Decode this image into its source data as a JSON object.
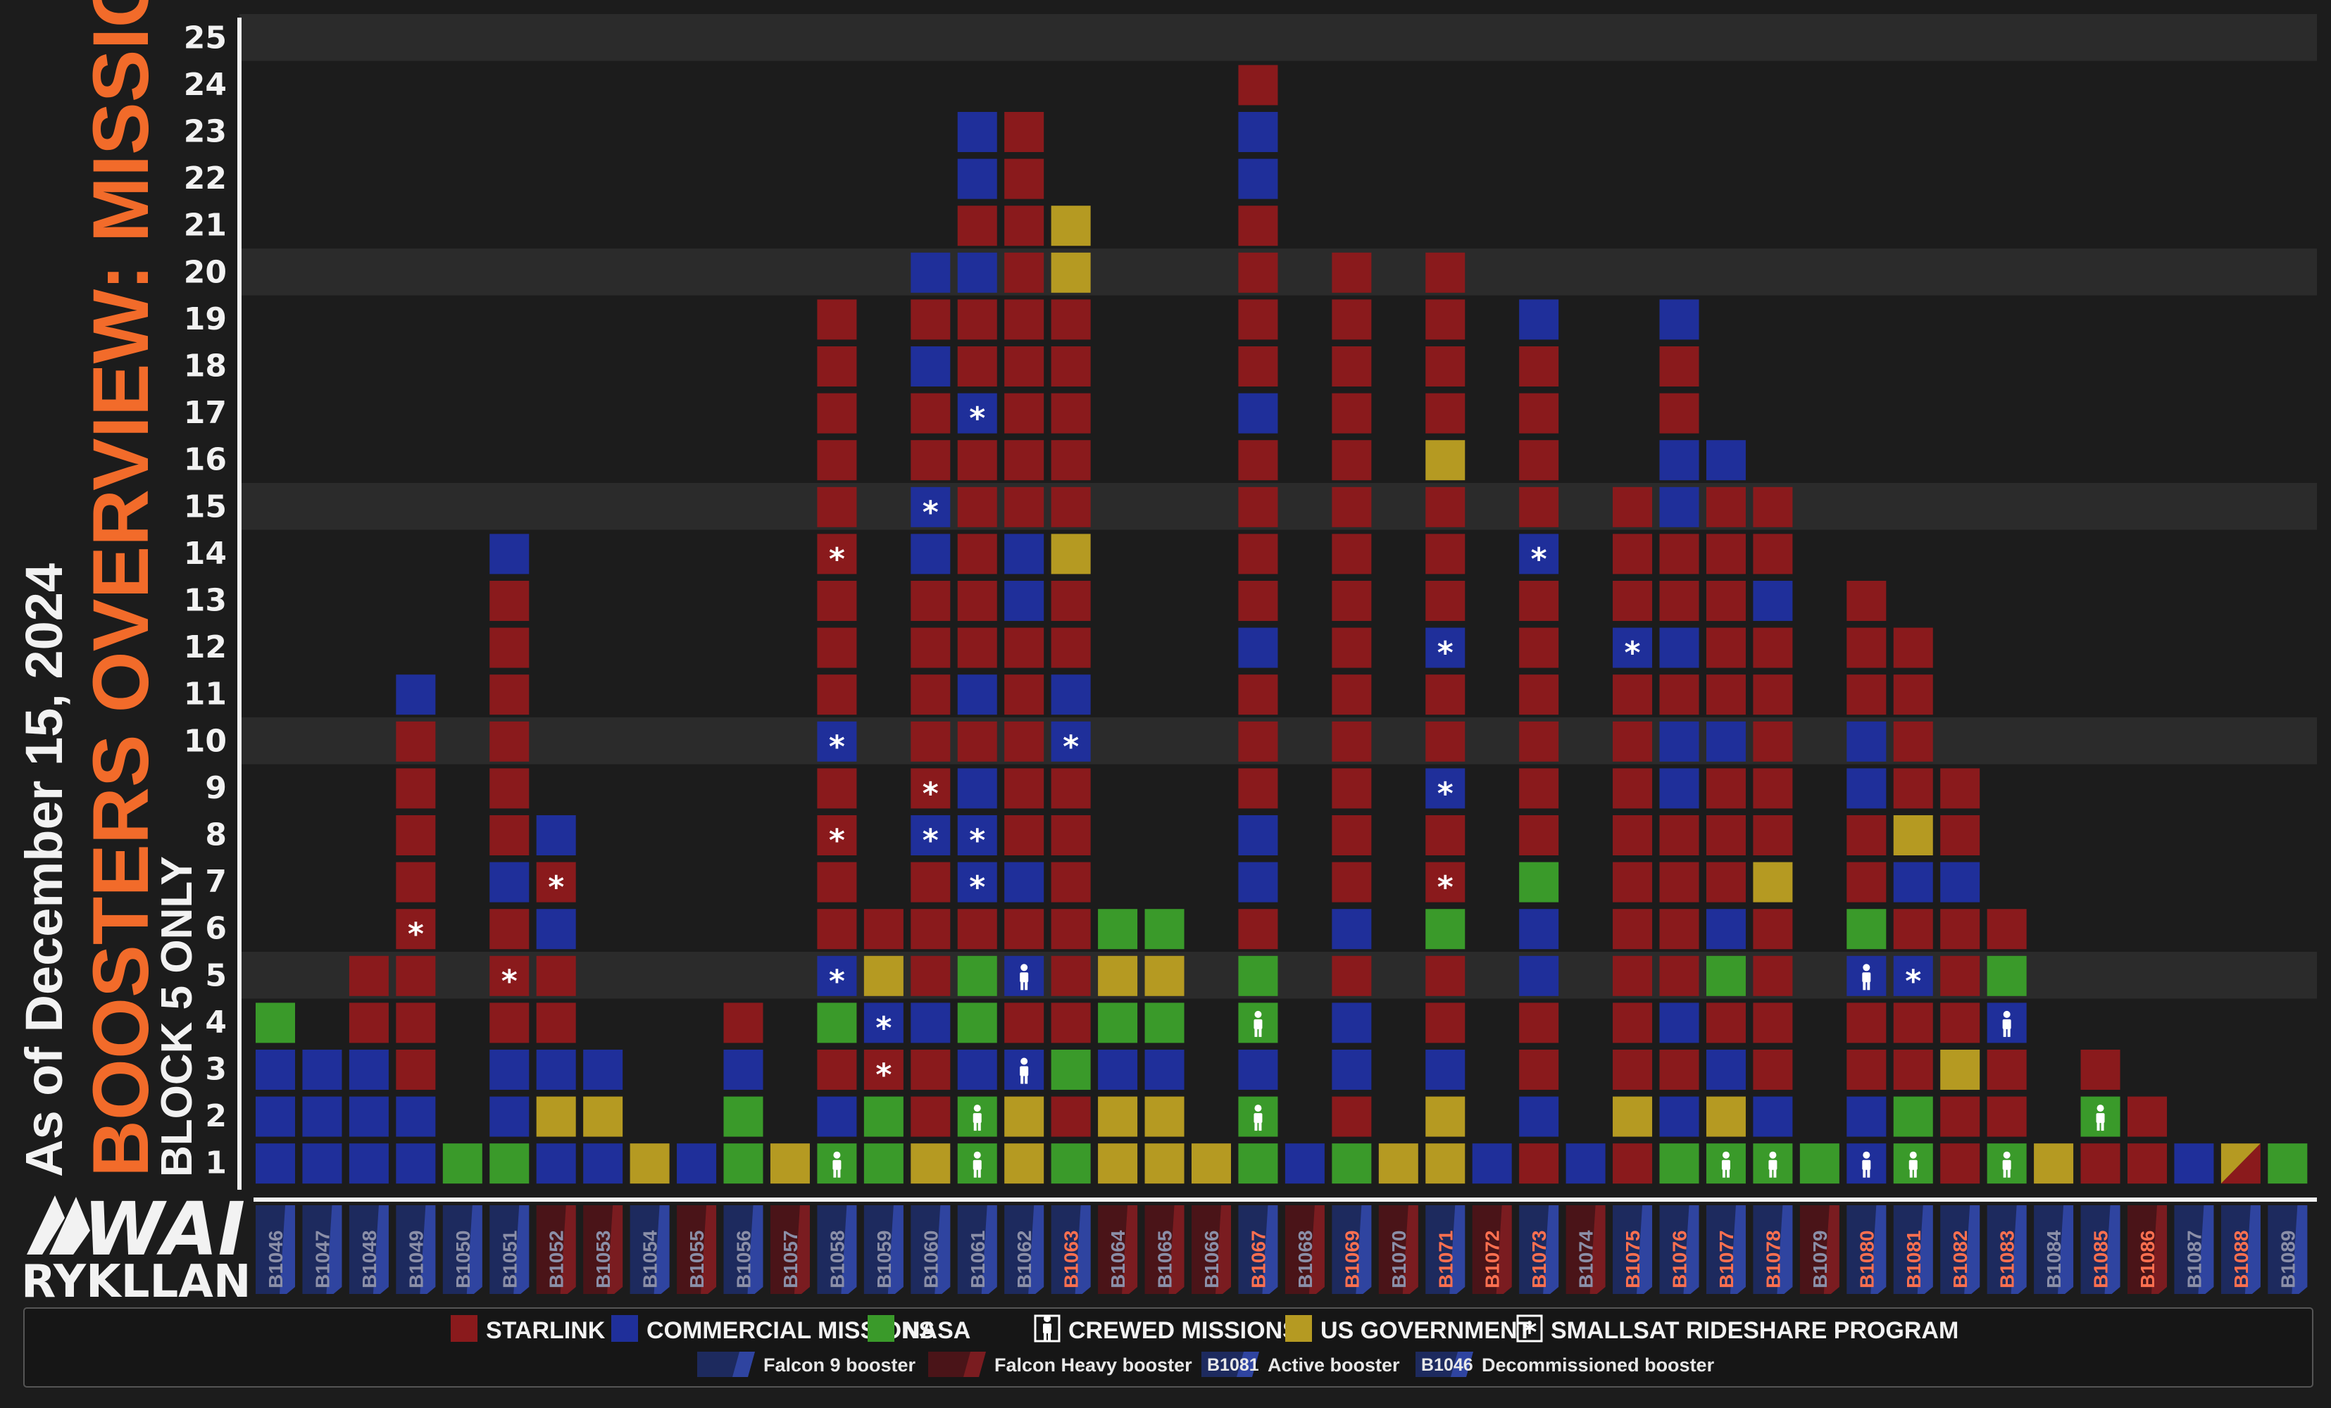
{
  "title": {
    "date": "As of December 15, 2024",
    "main": "BOOSTERS OVERVIEW: MISSIONS",
    "sub": "BLOCK 5 ONLY"
  },
  "logo": {
    "top": "WAI",
    "bottom": "RYKLLAN"
  },
  "colors": {
    "background": "#1c1c1c",
    "starlink": "#8a1a1c",
    "commercial": "#1f2f9a",
    "nasa": "#3a9a2a",
    "usgov": "#b59a22",
    "accent": "#f26b2a",
    "band": "#2b2b2b",
    "falcon9": "#2a3a8a",
    "falconHeavy": "#7a1c20"
  },
  "chart_data": {
    "type": "stacked-block",
    "ylim": [
      1,
      25
    ],
    "yticks": [
      1,
      2,
      3,
      4,
      5,
      6,
      7,
      8,
      9,
      10,
      11,
      12,
      13,
      14,
      15,
      16,
      17,
      18,
      19,
      20,
      21,
      22,
      23,
      24,
      25
    ],
    "codes": {
      "S": "STARLINK",
      "C": "COMMERCIAL MISSIONS",
      "N": "NASA",
      "G": "US GOVERNMENT",
      "X": "US GOVERNMENT / STARLINK",
      "c": "CREWED MISSIONS",
      "r": "SMALLSAT RIDESHARE PROGRAM"
    },
    "boosters": [
      {
        "id": "B1046",
        "type": "F9",
        "status": "decommissioned",
        "missions": [
          "C",
          "C",
          "C",
          "N"
        ]
      },
      {
        "id": "B1047",
        "type": "F9",
        "status": "decommissioned",
        "missions": [
          "C",
          "C",
          "C"
        ]
      },
      {
        "id": "B1048",
        "type": "F9",
        "status": "decommissioned",
        "missions": [
          "C",
          "C",
          "C",
          "S",
          "S"
        ]
      },
      {
        "id": "B1049",
        "type": "F9",
        "status": "decommissioned",
        "missions": [
          "C",
          "C",
          "S",
          "S",
          "S",
          "S:r",
          "S",
          "S",
          "S",
          "S",
          "C"
        ]
      },
      {
        "id": "B1050",
        "type": "F9",
        "status": "decommissioned",
        "missions": [
          "N"
        ]
      },
      {
        "id": "B1051",
        "type": "F9",
        "status": "decommissioned",
        "missions": [
          "N",
          "C",
          "C",
          "S",
          "S:r",
          "S",
          "C",
          "S",
          "S",
          "S",
          "S",
          "S",
          "S",
          "C"
        ]
      },
      {
        "id": "B1052",
        "type": "FH",
        "status": "decommissioned",
        "missions": [
          "C",
          "G",
          "C",
          "S",
          "S",
          "C",
          "S:r",
          "C"
        ]
      },
      {
        "id": "B1053",
        "type": "FH",
        "status": "decommissioned",
        "missions": [
          "C",
          "G",
          "C"
        ]
      },
      {
        "id": "B1054",
        "type": "F9",
        "status": "decommissioned",
        "missions": [
          "G"
        ]
      },
      {
        "id": "B1055",
        "type": "FH",
        "status": "decommissioned",
        "missions": [
          "C"
        ]
      },
      {
        "id": "B1056",
        "type": "F9",
        "status": "decommissioned",
        "missions": [
          "N",
          "N",
          "C",
          "S"
        ]
      },
      {
        "id": "B1057",
        "type": "FH",
        "status": "decommissioned",
        "missions": [
          "G"
        ]
      },
      {
        "id": "B1058",
        "type": "F9",
        "status": "decommissioned",
        "missions": [
          "N:c",
          "C",
          "S",
          "N",
          "C:r",
          "S",
          "S",
          "S:r",
          "S",
          "C:r",
          "S",
          "S",
          "S",
          "S:r",
          "S",
          "S",
          "S",
          "S",
          "S"
        ]
      },
      {
        "id": "B1059",
        "type": "F9",
        "status": "decommissioned",
        "missions": [
          "N",
          "N",
          "S:r",
          "C:r",
          "G",
          "S"
        ]
      },
      {
        "id": "B1060",
        "type": "F9",
        "status": "decommissioned",
        "missions": [
          "G",
          "S",
          "S",
          "C",
          "S",
          "S",
          "S",
          "C:r",
          "S:r",
          "S",
          "S",
          "S",
          "S",
          "C",
          "C:r",
          "S",
          "S",
          "C",
          "S",
          "C"
        ]
      },
      {
        "id": "B1061",
        "type": "F9",
        "status": "decommissioned",
        "missions": [
          "N:c",
          "N:c",
          "C",
          "N",
          "N",
          "S",
          "C:r",
          "C:r",
          "C",
          "S",
          "C",
          "S",
          "S",
          "S",
          "S",
          "S",
          "C:r",
          "S",
          "S",
          "C",
          "S",
          "C",
          "C"
        ]
      },
      {
        "id": "B1062",
        "type": "F9",
        "status": "decommissioned",
        "missions": [
          "G",
          "G",
          "C:c",
          "S",
          "C:c",
          "S",
          "C",
          "S",
          "S",
          "S",
          "S",
          "S",
          "C",
          "C",
          "S",
          "S",
          "S",
          "S",
          "S",
          "S",
          "S",
          "S",
          "S"
        ]
      },
      {
        "id": "B1063",
        "type": "F9",
        "status": "active",
        "missions": [
          "N",
          "S",
          "N",
          "S",
          "S",
          "S",
          "S",
          "S",
          "S",
          "C:r",
          "C",
          "S",
          "S",
          "G",
          "S",
          "S",
          "S",
          "S",
          "S",
          "G",
          "G"
        ]
      },
      {
        "id": "B1064",
        "type": "FH",
        "status": "decommissioned",
        "missions": [
          "G",
          "G",
          "C",
          "N",
          "G",
          "N"
        ]
      },
      {
        "id": "B1065",
        "type": "FH",
        "status": "decommissioned",
        "missions": [
          "G",
          "G",
          "C",
          "N",
          "G",
          "N"
        ]
      },
      {
        "id": "B1066",
        "type": "FH",
        "status": "decommissioned",
        "missions": [
          "G"
        ]
      },
      {
        "id": "B1067",
        "type": "F9",
        "status": "active",
        "missions": [
          "N",
          "N:c",
          "C",
          "N:c",
          "N",
          "S",
          "C",
          "C",
          "S",
          "S",
          "S",
          "C",
          "S",
          "S",
          "S",
          "S",
          "C",
          "S",
          "S",
          "S",
          "S",
          "C",
          "C",
          "S"
        ]
      },
      {
        "id": "B1068",
        "type": "FH",
        "status": "decommissioned",
        "missions": [
          "C"
        ]
      },
      {
        "id": "B1069",
        "type": "F9",
        "status": "active",
        "missions": [
          "N",
          "S",
          "C",
          "C",
          "S",
          "C",
          "S",
          "S",
          "S",
          "S",
          "S",
          "S",
          "S",
          "S",
          "S",
          "S",
          "S",
          "S",
          "S",
          "S"
        ]
      },
      {
        "id": "B1070",
        "type": "FH",
        "status": "decommissioned",
        "missions": [
          "G"
        ]
      },
      {
        "id": "B1071",
        "type": "F9",
        "status": "active",
        "missions": [
          "G",
          "G",
          "C",
          "S",
          "S",
          "N",
          "S:r",
          "S",
          "C:r",
          "S",
          "S",
          "C:r",
          "S",
          "S",
          "S",
          "G",
          "S",
          "S",
          "S",
          "S"
        ]
      },
      {
        "id": "B1072",
        "type": "FH",
        "status": "active",
        "missions": [
          "C"
        ]
      },
      {
        "id": "B1073",
        "type": "F9",
        "status": "active",
        "missions": [
          "S",
          "C",
          "S",
          "S",
          "C",
          "C",
          "N",
          "S",
          "S",
          "S",
          "S",
          "S",
          "S",
          "C:r",
          "S",
          "S",
          "S",
          "S",
          "C"
        ]
      },
      {
        "id": "B1074",
        "type": "FH",
        "status": "decommissioned",
        "missions": [
          "C"
        ]
      },
      {
        "id": "B1075",
        "type": "F9",
        "status": "active",
        "missions": [
          "S",
          "G",
          "S",
          "S",
          "S",
          "S",
          "S",
          "S",
          "S",
          "S",
          "S",
          "C:r",
          "S",
          "S",
          "S"
        ]
      },
      {
        "id": "B1076",
        "type": "F9",
        "status": "active",
        "missions": [
          "N",
          "C",
          "S",
          "C",
          "S",
          "S",
          "S",
          "S",
          "C",
          "C",
          "S",
          "C",
          "S",
          "S",
          "C",
          "C",
          "S",
          "S",
          "C"
        ]
      },
      {
        "id": "B1077",
        "type": "F9",
        "status": "active",
        "missions": [
          "N:c",
          "G",
          "C",
          "S",
          "N",
          "C",
          "S",
          "S",
          "S",
          "C",
          "S",
          "S",
          "S",
          "S",
          "S",
          "C"
        ]
      },
      {
        "id": "B1078",
        "type": "F9",
        "status": "active",
        "missions": [
          "N:c",
          "C",
          "S",
          "S",
          "S",
          "S",
          "G",
          "S",
          "S",
          "S",
          "S",
          "S",
          "C",
          "S",
          "S"
        ]
      },
      {
        "id": "B1079",
        "type": "FH",
        "status": "decommissioned",
        "missions": [
          "N"
        ]
      },
      {
        "id": "B1080",
        "type": "F9",
        "status": "active",
        "missions": [
          "C:c",
          "C",
          "S",
          "S",
          "C:c",
          "N",
          "S",
          "S",
          "C",
          "C",
          "S",
          "S",
          "S"
        ]
      },
      {
        "id": "B1081",
        "type": "F9",
        "status": "active",
        "missions": [
          "N:c",
          "N",
          "S",
          "S",
          "C:r",
          "S",
          "C",
          "G",
          "S",
          "S",
          "S",
          "S"
        ]
      },
      {
        "id": "B1082",
        "type": "F9",
        "status": "active",
        "missions": [
          "S",
          "S",
          "G",
          "S",
          "S",
          "S",
          "C",
          "S",
          "S"
        ]
      },
      {
        "id": "B1083",
        "type": "F9",
        "status": "active",
        "missions": [
          "N:c",
          "S",
          "S",
          "C:c",
          "N",
          "S"
        ]
      },
      {
        "id": "B1084",
        "type": "F9",
        "status": "decommissioned",
        "missions": [
          "G"
        ]
      },
      {
        "id": "B1085",
        "type": "F9",
        "status": "active",
        "missions": [
          "S",
          "N:c",
          "S"
        ]
      },
      {
        "id": "B1086",
        "type": "FH",
        "status": "active",
        "missions": [
          "S",
          "S"
        ]
      },
      {
        "id": "B1087",
        "type": "F9",
        "status": "decommissioned",
        "missions": [
          "C"
        ]
      },
      {
        "id": "B1088",
        "type": "F9",
        "status": "active",
        "missions": [
          "X"
        ]
      },
      {
        "id": "B1089",
        "type": "F9",
        "status": "decommissioned",
        "missions": [
          "N"
        ]
      }
    ],
    "legend": [
      {
        "key": "starlink",
        "label": "STARLINK"
      },
      {
        "key": "commercial",
        "label": "COMMERCIAL MISSIONS"
      },
      {
        "key": "nasa",
        "label": "NASA"
      },
      {
        "key": "crewed",
        "label": "CREWED MISSIONS"
      },
      {
        "key": "usgov",
        "label": "US GOVERNMENT"
      },
      {
        "key": "rideshare",
        "label": "SMALLSAT RIDESHARE PROGRAM"
      }
    ],
    "legend_row2": [
      {
        "key": "f9",
        "label": "Falcon 9 booster"
      },
      {
        "key": "fh",
        "label": "Falcon Heavy booster"
      },
      {
        "key": "active",
        "sample": "B1081",
        "label": "Active booster"
      },
      {
        "key": "decom",
        "sample": "B1046",
        "label": "Decommissioned booster"
      }
    ]
  }
}
